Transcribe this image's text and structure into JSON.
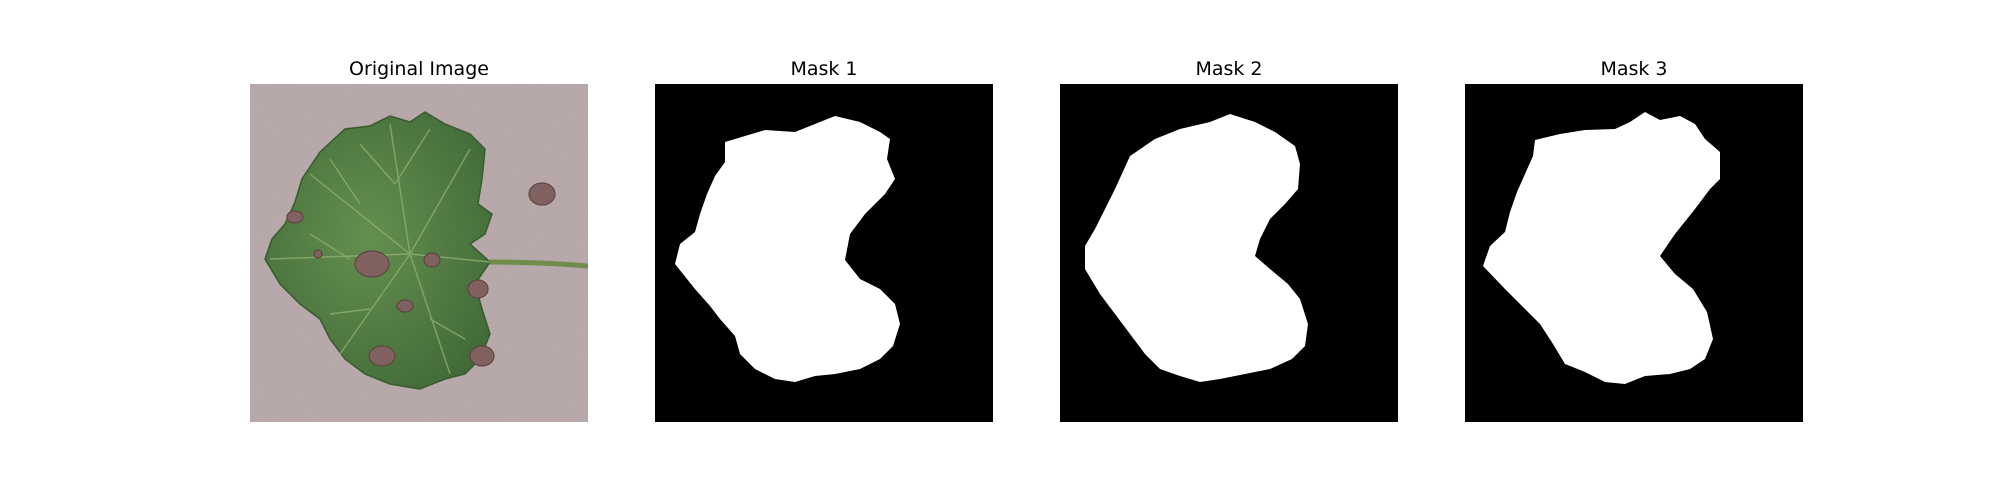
{
  "figure": {
    "panels": [
      {
        "title": "Original Image"
      },
      {
        "title": "Mask 1"
      },
      {
        "title": "Mask 2"
      },
      {
        "title": "Mask 3"
      }
    ],
    "colors": {
      "background_original": "#b8a8aa",
      "leaf_dark": "#3e6b34",
      "leaf_light": "#5a8a45",
      "lesion": "#7a5a58",
      "mask_background": "#000000",
      "mask_foreground": "#ffffff"
    }
  }
}
